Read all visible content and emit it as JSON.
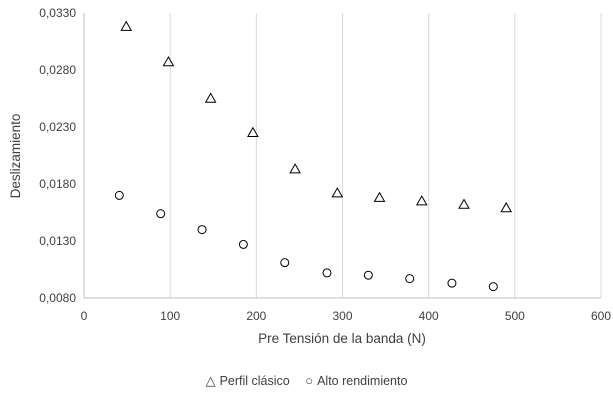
{
  "chart_data": {
    "type": "scatter",
    "title": "",
    "xlabel": "Pre Tensión de la banda (N)",
    "ylabel": "Deslizamiento",
    "xlim": [
      0,
      600
    ],
    "ylim": [
      0.008,
      0.033
    ],
    "x_ticks": [
      "0",
      "100",
      "200",
      "300",
      "400",
      "500",
      "600"
    ],
    "y_ticks": [
      "0,0080",
      "0,0130",
      "0,0180",
      "0,0230",
      "0,0280",
      "0,0330"
    ],
    "grid": "vertical",
    "legend_position": "bottom",
    "series": [
      {
        "name": "Perfil clásico",
        "marker": "triangle",
        "color": "#000000",
        "points": [
          {
            "x": 49,
            "y": 0.0318
          },
          {
            "x": 98,
            "y": 0.0287
          },
          {
            "x": 147,
            "y": 0.0255
          },
          {
            "x": 196,
            "y": 0.0225
          },
          {
            "x": 245,
            "y": 0.0193
          },
          {
            "x": 294,
            "y": 0.0172
          },
          {
            "x": 343,
            "y": 0.0168
          },
          {
            "x": 392,
            "y": 0.0165
          },
          {
            "x": 441,
            "y": 0.0162
          },
          {
            "x": 490,
            "y": 0.0159
          }
        ]
      },
      {
        "name": "Alto rendimiento",
        "marker": "circle",
        "color": "#000000",
        "points": [
          {
            "x": 41,
            "y": 0.017
          },
          {
            "x": 89,
            "y": 0.0154
          },
          {
            "x": 137,
            "y": 0.014
          },
          {
            "x": 185,
            "y": 0.0127
          },
          {
            "x": 233,
            "y": 0.0111
          },
          {
            "x": 282,
            "y": 0.0102
          },
          {
            "x": 330,
            "y": 0.01
          },
          {
            "x": 378,
            "y": 0.0097
          },
          {
            "x": 427,
            "y": 0.0093
          },
          {
            "x": 475,
            "y": 0.009
          }
        ]
      }
    ]
  }
}
